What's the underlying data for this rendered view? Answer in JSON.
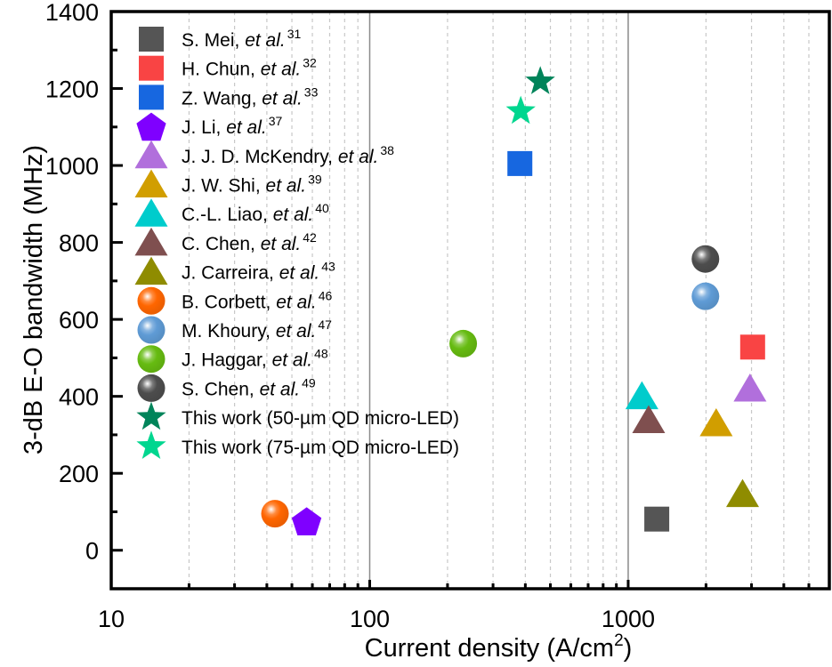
{
  "chart_data": {
    "type": "scatter",
    "title": "",
    "xlabel": "Current density (A/cm",
    "xlabel_sup": "2",
    "xlabel_end": ")",
    "ylabel": "3-dB E-O bandwidth (MHz)",
    "xscale": "log",
    "xlim": [
      10,
      6000
    ],
    "ylim": [
      -100,
      1400
    ],
    "xticks": [
      10,
      100,
      1000
    ],
    "xtick_labels": [
      "10",
      "100",
      "1000"
    ],
    "yticks": [
      0,
      200,
      400,
      600,
      800,
      1000,
      1200,
      1400
    ],
    "ytick_labels": [
      "0",
      "200",
      "400",
      "600",
      "800",
      "1000",
      "1200",
      "1400"
    ],
    "grid": {
      "major_x": true,
      "minor_x": true,
      "y": false
    },
    "legend_position": "top-left",
    "series": [
      {
        "name": "S. Mei, ",
        "italic": "et al.",
        "ref": "31",
        "marker": "square",
        "color": "#555555",
        "x": [
          1290
        ],
        "y": [
          81
        ]
      },
      {
        "name": "H. Chun, ",
        "italic": "et al.",
        "ref": "32",
        "marker": "square",
        "color": "#f94444",
        "x": [
          3030
        ],
        "y": [
          528
        ]
      },
      {
        "name": "Z. Wang, ",
        "italic": "et al.",
        "ref": "33",
        "marker": "square",
        "color": "#1767e0",
        "x": [
          381
        ],
        "y": [
          1005
        ]
      },
      {
        "name": "J. Li, ",
        "italic": "et al.",
        "ref": "37",
        "marker": "pentagon",
        "color": "#7f00ff",
        "x": [
          57
        ],
        "y": [
          76
        ]
      },
      {
        "name": "J. J. D. McKendry, ",
        "italic": "et al.",
        "ref": "38",
        "marker": "triangle",
        "color": "#b16fdc",
        "x": [
          2960
        ],
        "y": [
          420
        ]
      },
      {
        "name": "J. W. Shi, ",
        "italic": "et al.",
        "ref": "39",
        "marker": "triangle",
        "color": "#d19e00",
        "x": [
          2190
        ],
        "y": [
          330
        ]
      },
      {
        "name": "C.-L. Liao, ",
        "italic": "et al.",
        "ref": "40",
        "marker": "triangle",
        "color": "#00cccc",
        "x": [
          1130
        ],
        "y": [
          400
        ]
      },
      {
        "name": "C. Chen, ",
        "italic": "et al.",
        "ref": "42",
        "marker": "triangle",
        "color": "#7f4f4f",
        "x": [
          1200
        ],
        "y": [
          338
        ]
      },
      {
        "name": "J. Carreira, ",
        "italic": "et al.",
        "ref": "43",
        "marker": "triangle",
        "color": "#8f8c00",
        "x": [
          2770
        ],
        "y": [
          146
        ]
      },
      {
        "name": "B. Corbett, ",
        "italic": "et al.",
        "ref": "46",
        "marker": "sphere",
        "color": "#ff6600",
        "x": [
          43
        ],
        "y": [
          95
        ]
      },
      {
        "name": "M. Khoury, ",
        "italic": "et al.",
        "ref": "47",
        "marker": "sphere",
        "color": "#5f9bd5",
        "x": [
          1990
        ],
        "y": [
          660
        ]
      },
      {
        "name": "J. Haggar, ",
        "italic": "et al.",
        "ref": "48",
        "marker": "sphere",
        "color": "#66bb11",
        "x": [
          230
        ],
        "y": [
          537
        ]
      },
      {
        "name": "S. Chen, ",
        "italic": "et al.",
        "ref": "49",
        "marker": "sphere",
        "color": "#4d4d4d",
        "x": [
          1990
        ],
        "y": [
          757
        ]
      },
      {
        "name": "This work (50-µm QD micro-LED)",
        "italic": "",
        "ref": "",
        "marker": "star",
        "color": "#00845a",
        "x": [
          457
        ],
        "y": [
          1218
        ]
      },
      {
        "name": "This work (75-µm QD micro-LED)",
        "italic": "",
        "ref": "",
        "marker": "star",
        "color": "#00d68f",
        "x": [
          384
        ],
        "y": [
          1141
        ]
      }
    ]
  }
}
